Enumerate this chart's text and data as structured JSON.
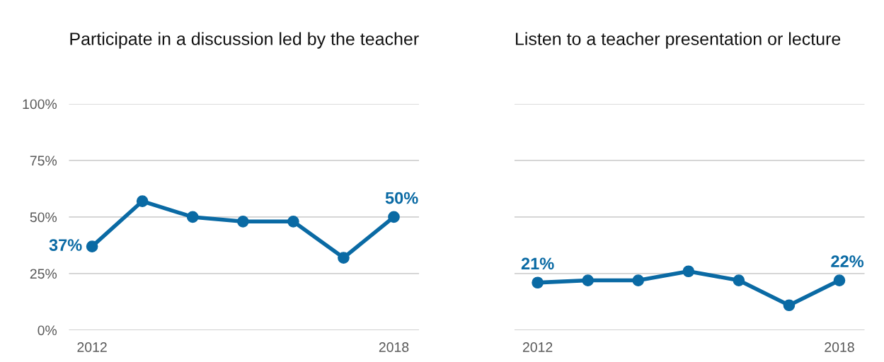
{
  "chart_data": [
    {
      "type": "line",
      "title": "Participate in a discussion led by the teacher",
      "categories": [
        "2012",
        null,
        null,
        null,
        null,
        null,
        "2018"
      ],
      "series": [
        {
          "color": "#0a6aa4",
          "values": [
            37,
            57,
            50,
            48,
            48,
            32,
            50
          ],
          "value_labels": [
            "37%",
            null,
            null,
            null,
            null,
            null,
            "50%"
          ]
        }
      ],
      "ylim": [
        0,
        100
      ],
      "yticks": [
        {
          "value": 0,
          "label": "0%"
        },
        {
          "value": 25,
          "label": "25%"
        },
        {
          "value": 50,
          "label": "50%"
        },
        {
          "value": 75,
          "label": "75%"
        },
        {
          "value": 100,
          "label": "100%"
        }
      ],
      "grid": "y",
      "marker": "circle",
      "line_style": "solid"
    },
    {
      "type": "line",
      "title": "Listen to a teacher presentation or lecture",
      "categories": [
        "2012",
        null,
        null,
        null,
        null,
        null,
        "2018"
      ],
      "series": [
        {
          "color": "#0a6aa4",
          "values": [
            21,
            22,
            22,
            26,
            22,
            11,
            22
          ],
          "value_labels": [
            "21%",
            null,
            null,
            null,
            null,
            null,
            "22%"
          ]
        }
      ],
      "ylim": [
        0,
        100
      ],
      "yticks": [
        {
          "value": 0,
          "label": null
        },
        {
          "value": 25,
          "label": null
        },
        {
          "value": 50,
          "label": null
        },
        {
          "value": 75,
          "label": null
        },
        {
          "value": 100,
          "label": null
        }
      ],
      "grid": "y",
      "marker": "circle",
      "line_style": "solid",
      "tick_labels": "x"
    }
  ]
}
